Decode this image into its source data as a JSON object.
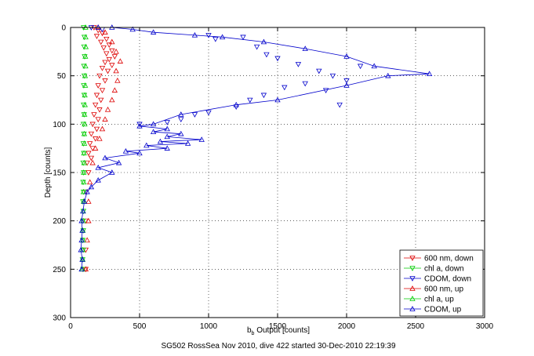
{
  "chart_data": {
    "type": "scatter",
    "xlabel_main": "b",
    "xlabel_sub": "b",
    "xlabel_rest": " Output [counts]",
    "ylabel": "Depth [counts]",
    "caption": "SG502 RossSea Nov 2010, dive 422 started 30-Dec-2010 22:19:39",
    "xlim": [
      0,
      3000
    ],
    "ylim": [
      0,
      300
    ],
    "y_reversed": true,
    "grid": true,
    "legend_position": "bottom-right",
    "x_ticks": [
      "0",
      "500",
      "1000",
      "1500",
      "2000",
      "2500",
      "3000"
    ],
    "y_ticks": [
      "0",
      "50",
      "100",
      "150",
      "200",
      "250",
      "300"
    ],
    "series": [
      {
        "name": "600 nm, down",
        "color": "#dd0000",
        "marker": "triangle-down",
        "line": false,
        "points": [
          [
            170,
            0
          ],
          [
            200,
            3
          ],
          [
            230,
            6
          ],
          [
            190,
            9
          ],
          [
            260,
            12
          ],
          [
            220,
            15
          ],
          [
            280,
            18
          ],
          [
            240,
            21
          ],
          [
            300,
            24
          ],
          [
            260,
            27
          ],
          [
            320,
            30
          ],
          [
            280,
            33
          ],
          [
            250,
            36
          ],
          [
            300,
            39
          ],
          [
            230,
            42
          ],
          [
            270,
            45
          ],
          [
            210,
            50
          ],
          [
            250,
            55
          ],
          [
            200,
            60
          ],
          [
            230,
            65
          ],
          [
            190,
            70
          ],
          [
            220,
            75
          ],
          [
            180,
            80
          ],
          [
            210,
            85
          ],
          [
            170,
            90
          ],
          [
            200,
            95
          ],
          [
            160,
            100
          ],
          [
            190,
            105
          ],
          [
            150,
            110
          ],
          [
            180,
            115
          ],
          [
            140,
            120
          ],
          [
            160,
            125
          ],
          [
            130,
            130
          ],
          [
            150,
            135
          ],
          [
            120,
            140
          ],
          [
            130,
            150
          ],
          [
            110,
            170
          ],
          [
            110,
            200
          ],
          [
            110,
            230
          ],
          [
            110,
            250
          ]
        ]
      },
      {
        "name": "chl a, down",
        "color": "#00cc00",
        "marker": "triangle-down",
        "line": false,
        "points": [
          [
            95,
            0
          ],
          [
            100,
            10
          ],
          [
            98,
            20
          ],
          [
            102,
            30
          ],
          [
            97,
            40
          ],
          [
            100,
            50
          ],
          [
            96,
            60
          ],
          [
            99,
            70
          ],
          [
            95,
            80
          ],
          [
            98,
            90
          ],
          [
            94,
            100
          ],
          [
            97,
            110
          ],
          [
            93,
            120
          ],
          [
            96,
            130
          ],
          [
            92,
            140
          ],
          [
            95,
            150
          ],
          [
            91,
            160
          ],
          [
            94,
            170
          ],
          [
            90,
            180
          ],
          [
            93,
            190
          ],
          [
            89,
            200
          ],
          [
            92,
            210
          ],
          [
            88,
            220
          ],
          [
            91,
            230
          ],
          [
            87,
            240
          ],
          [
            90,
            250
          ]
        ]
      },
      {
        "name": "CDOM, down",
        "color": "#0000cc",
        "marker": "triangle-down",
        "line": false,
        "points": [
          [
            150,
            0
          ],
          [
            230,
            2
          ],
          [
            1000,
            8
          ],
          [
            1050,
            12
          ],
          [
            1250,
            10
          ],
          [
            1350,
            20
          ],
          [
            1420,
            28
          ],
          [
            1500,
            32
          ],
          [
            1650,
            38
          ],
          [
            1800,
            45
          ],
          [
            1900,
            50
          ],
          [
            2000,
            55
          ],
          [
            1700,
            58
          ],
          [
            1550,
            62
          ],
          [
            1400,
            70
          ],
          [
            1300,
            75
          ],
          [
            1200,
            82
          ],
          [
            1000,
            88
          ],
          [
            900,
            90
          ],
          [
            1850,
            65
          ],
          [
            2100,
            40
          ],
          [
            1950,
            80
          ],
          [
            800,
            95
          ],
          [
            700,
            98
          ],
          [
            500,
            100
          ]
        ]
      },
      {
        "name": "600 nm, up",
        "color": "#dd0000",
        "marker": "triangle-up",
        "line": false,
        "points": [
          [
            110,
            250
          ],
          [
            120,
            220
          ],
          [
            130,
            200
          ],
          [
            130,
            180
          ],
          [
            140,
            160
          ],
          [
            160,
            140
          ],
          [
            180,
            125
          ],
          [
            210,
            115
          ],
          [
            230,
            105
          ],
          [
            250,
            95
          ],
          [
            270,
            85
          ],
          [
            300,
            75
          ],
          [
            320,
            65
          ],
          [
            340,
            55
          ],
          [
            330,
            45
          ],
          [
            360,
            35
          ],
          [
            330,
            25
          ],
          [
            300,
            15
          ],
          [
            250,
            5
          ],
          [
            200,
            0
          ]
        ]
      },
      {
        "name": "chl a, up",
        "color": "#00cc00",
        "marker": "triangle-up",
        "line": false,
        "points": [
          [
            85,
            250
          ],
          [
            88,
            240
          ],
          [
            87,
            230
          ],
          [
            90,
            220
          ],
          [
            89,
            210
          ],
          [
            92,
            200
          ],
          [
            91,
            190
          ],
          [
            94,
            180
          ],
          [
            93,
            170
          ],
          [
            96,
            160
          ],
          [
            95,
            150
          ],
          [
            98,
            140
          ],
          [
            97,
            130
          ],
          [
            100,
            120
          ],
          [
            99,
            110
          ],
          [
            102,
            100
          ],
          [
            101,
            90
          ],
          [
            104,
            80
          ],
          [
            103,
            70
          ],
          [
            106,
            60
          ],
          [
            105,
            50
          ],
          [
            108,
            40
          ],
          [
            107,
            30
          ],
          [
            110,
            20
          ],
          [
            109,
            10
          ],
          [
            108,
            0
          ]
        ]
      },
      {
        "name": "CDOM, up",
        "color": "#0000cc",
        "marker": "triangle-up",
        "line": true,
        "points": [
          [
            80,
            250
          ],
          [
            85,
            240
          ],
          [
            75,
            230
          ],
          [
            80,
            220
          ],
          [
            85,
            210
          ],
          [
            80,
            200
          ],
          [
            90,
            190
          ],
          [
            100,
            180
          ],
          [
            120,
            170
          ],
          [
            150,
            165
          ],
          [
            200,
            158
          ],
          [
            300,
            150
          ],
          [
            200,
            145
          ],
          [
            350,
            140
          ],
          [
            250,
            135
          ],
          [
            500,
            130
          ],
          [
            400,
            128
          ],
          [
            700,
            125
          ],
          [
            550,
            122
          ],
          [
            850,
            120
          ],
          [
            650,
            118
          ],
          [
            950,
            116
          ],
          [
            700,
            113
          ],
          [
            800,
            110
          ],
          [
            600,
            108
          ],
          [
            700,
            105
          ],
          [
            500,
            102
          ],
          [
            600,
            100
          ],
          [
            800,
            90
          ],
          [
            1200,
            80
          ],
          [
            1500,
            75
          ],
          [
            2000,
            60
          ],
          [
            2300,
            50
          ],
          [
            2600,
            48
          ],
          [
            2200,
            40
          ],
          [
            2000,
            30
          ],
          [
            1700,
            22
          ],
          [
            1400,
            15
          ],
          [
            1100,
            10
          ],
          [
            900,
            8
          ],
          [
            600,
            5
          ],
          [
            450,
            2
          ],
          [
            300,
            0
          ],
          [
            200,
            0
          ]
        ]
      }
    ]
  }
}
